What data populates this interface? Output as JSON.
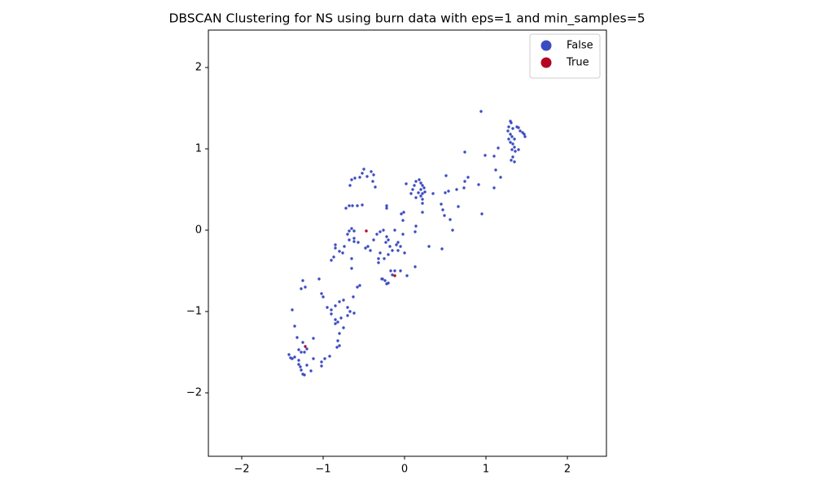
{
  "chart_data": {
    "type": "scatter",
    "title": "DBSCAN Clustering for NS using burn data with eps=1 and min_samples=5",
    "xlim": [
      -2.41,
      2.48
    ],
    "ylim": [
      -2.78,
      2.46
    ],
    "xticks": [
      {
        "value": -2,
        "label": "−2"
      },
      {
        "value": -1,
        "label": "−1"
      },
      0,
      1,
      2
    ],
    "yticks": [
      {
        "value": -2,
        "label": "−2"
      },
      {
        "value": -1,
        "label": "−1"
      },
      0,
      1,
      2
    ],
    "legend": "upper right",
    "series": [
      {
        "name": "False",
        "color": "#3b4cc0",
        "x": [
          0.94,
          1.3,
          1.31,
          1.28,
          1.33,
          1.38,
          1.4,
          1.42,
          1.45,
          1.47,
          1.48,
          1.27,
          1.3,
          1.32,
          1.35,
          1.3,
          1.33,
          1.35,
          1.32,
          1.36,
          1.4,
          1.33,
          1.35,
          1.31,
          1.28,
          1.15,
          1.1,
          1.12,
          1.18,
          1.1,
          0.99,
          0.74,
          0.78,
          0.74,
          0.73,
          0.91,
          0.95,
          0.64,
          0.66,
          0.51,
          0.5,
          0.54,
          0.47,
          0.49,
          0.56,
          0.59,
          0.45,
          0.46,
          0.1,
          0.12,
          0.14,
          0.18,
          0.2,
          0.22,
          0.24,
          0.2,
          0.17,
          0.22,
          0.25,
          0.2,
          0.22,
          0.14,
          0.08,
          0.22,
          0.22,
          0.02,
          -0.01,
          -0.04,
          -0.02,
          0.14,
          0.13,
          0.3,
          0.35,
          -0.5,
          -0.52,
          -0.55,
          -0.46,
          -0.41,
          -0.38,
          -0.39,
          -0.36,
          -0.65,
          -0.61,
          -0.67,
          -0.52,
          -0.58,
          -0.64,
          -0.68,
          -0.72,
          -0.65,
          -0.62,
          -0.68,
          -0.7,
          -0.62,
          -0.68,
          -0.74,
          -0.62,
          -0.57,
          -0.85,
          -0.85,
          -0.8,
          -0.76,
          -0.87,
          -0.9,
          -0.65,
          -0.65,
          -0.45,
          -0.48,
          -0.42,
          -0.38,
          -0.34,
          -0.3,
          -0.26,
          -0.22,
          -0.2,
          -0.23,
          -0.18,
          -0.15,
          -0.1,
          -0.08,
          -0.05,
          -0.08,
          -0.3,
          -0.32,
          -0.32,
          -0.25,
          -0.2,
          -0.22,
          -0.22,
          -0.12,
          -0.02,
          0.0,
          -0.12,
          -0.17,
          -0.15,
          -0.05,
          0.03,
          0.13,
          -0.28,
          -0.24,
          -0.22,
          -0.2,
          -0.27,
          -0.58,
          -0.55,
          -0.63,
          -1.25,
          -1.27,
          -1.22,
          -1.05,
          -1.02,
          -1.0,
          -0.95,
          -0.9,
          -0.85,
          -0.8,
          -0.75,
          -0.7,
          -0.7,
          -0.67,
          -0.62,
          -0.9,
          -0.85,
          -0.82,
          -0.85,
          -0.78,
          -0.75,
          -0.8,
          -0.82,
          -0.83,
          -0.8,
          -0.92,
          -0.98,
          -1.02,
          -1.02,
          -1.12,
          -1.12,
          -1.15,
          -1.38,
          -1.35,
          -1.32,
          -1.25,
          -1.3,
          -1.27,
          -1.23,
          -1.2,
          -1.42,
          -1.4,
          -1.38,
          -1.35,
          -1.3,
          -1.3,
          -1.28,
          -1.27,
          -1.25,
          -1.23,
          -1.2
        ],
        "values": [
          1.46,
          1.34,
          1.32,
          1.27,
          1.25,
          1.27,
          1.26,
          1.22,
          1.2,
          1.18,
          1.15,
          1.22,
          1.18,
          1.15,
          1.12,
          1.08,
          1.06,
          1.02,
          0.99,
          0.97,
          0.99,
          0.9,
          0.84,
          0.86,
          1.12,
          1.01,
          0.91,
          0.74,
          0.65,
          0.52,
          0.92,
          0.96,
          0.65,
          0.6,
          0.52,
          0.56,
          0.2,
          0.5,
          0.29,
          0.67,
          0.46,
          0.48,
          0.25,
          0.18,
          0.13,
          0.0,
          0.32,
          -0.23,
          0.5,
          0.55,
          0.6,
          0.62,
          0.58,
          0.55,
          0.52,
          0.5,
          0.46,
          0.45,
          0.47,
          0.42,
          0.38,
          0.4,
          0.45,
          0.33,
          0.22,
          0.57,
          0.22,
          0.2,
          0.12,
          0.05,
          -0.02,
          -0.2,
          0.45,
          0.75,
          0.7,
          0.65,
          0.66,
          0.72,
          0.68,
          0.6,
          0.53,
          0.62,
          0.64,
          0.55,
          0.31,
          0.3,
          0.3,
          0.3,
          0.27,
          0.02,
          -0.01,
          -0.01,
          -0.05,
          -0.1,
          -0.12,
          -0.2,
          -0.14,
          -0.15,
          -0.18,
          -0.22,
          -0.26,
          -0.28,
          -0.33,
          -0.37,
          -0.35,
          -0.47,
          -0.2,
          -0.22,
          -0.25,
          -0.12,
          -0.05,
          -0.02,
          0.0,
          -0.08,
          -0.12,
          -0.15,
          -0.2,
          -0.25,
          -0.18,
          -0.15,
          -0.2,
          -0.25,
          -0.28,
          -0.35,
          -0.4,
          -0.35,
          -0.3,
          0.27,
          0.3,
          0.0,
          -0.05,
          -0.28,
          -0.5,
          -0.5,
          -0.55,
          -0.5,
          -0.56,
          -0.45,
          -0.6,
          -0.62,
          -0.66,
          -0.65,
          -0.6,
          -0.7,
          -0.68,
          -0.82,
          -0.62,
          -0.72,
          -0.7,
          -0.6,
          -0.78,
          -0.82,
          -0.95,
          -0.98,
          -0.93,
          -0.88,
          -0.86,
          -0.95,
          -1.05,
          -1.0,
          -1.02,
          -1.03,
          -1.1,
          -1.13,
          -1.15,
          -1.08,
          -1.2,
          -1.27,
          -1.36,
          -1.44,
          -1.42,
          -1.55,
          -1.58,
          -1.62,
          -1.67,
          -1.33,
          -1.58,
          -1.73,
          -0.98,
          -1.18,
          -1.32,
          -1.38,
          -1.47,
          -1.5,
          -1.5,
          -1.46,
          -1.53,
          -1.57,
          -1.58,
          -1.56,
          -1.6,
          -1.65,
          -1.68,
          -1.72,
          -1.77,
          -1.78,
          -1.66
        ]
      },
      {
        "name": "True",
        "color": "#b40426",
        "x": [
          -0.47,
          -0.12,
          -1.22
        ],
        "values": [
          -0.01,
          -0.56,
          -1.43
        ]
      }
    ]
  }
}
